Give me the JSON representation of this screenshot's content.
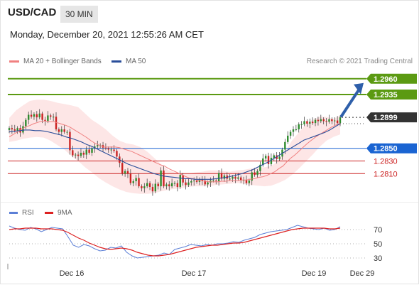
{
  "header": {
    "symbol": "USD/CAD",
    "timeframe": "30 MIN",
    "datetime": "Monday, December 20, 2021 12:55:26 AM CET"
  },
  "legend": {
    "ma_bb": "MA 20 + Bollinger Bands",
    "ma50": "MA 50",
    "credit": "Research © 2021 Trading Central"
  },
  "rsi_legend": {
    "rsi": "RSI",
    "ma9": "9MA"
  },
  "colors": {
    "bullish": "#5b9a12",
    "bearish": "#cc2222",
    "current": "#333333",
    "pivot": "#1a64d2",
    "ma20": "#f08080",
    "ma50": "#2a4e9a",
    "band_fill": "#fde2e2",
    "rsi": "#5b7fd6",
    "rsi_ma": "#dd2222",
    "arrow": "#2e5faa",
    "candle_up": "#2e8b2e",
    "candle_down": "#cc2222"
  },
  "chart_data": [
    {
      "type": "candlestick",
      "title": "USD/CAD 30 MIN",
      "x_ticks": [
        "Dec 16",
        "Dec 17",
        "Dec 19",
        "Dec 29"
      ],
      "ylim": [
        1.278,
        1.298
      ],
      "levels": [
        {
          "label": "1.2960",
          "value": 1.296,
          "kind": "resistance"
        },
        {
          "label": "1.2935",
          "value": 1.2935,
          "kind": "resistance"
        },
        {
          "label": "1.2899",
          "value": 1.2899,
          "kind": "current"
        },
        {
          "label": "1.2850",
          "value": 1.285,
          "kind": "pivot"
        },
        {
          "label": "1.2830",
          "value": 1.283,
          "kind": "support"
        },
        {
          "label": "1.2810",
          "value": 1.281,
          "kind": "support"
        }
      ],
      "close": [
        1.2882,
        1.288,
        1.2878,
        1.2882,
        1.2875,
        1.2885,
        1.2895,
        1.2903,
        1.29,
        1.2904,
        1.2899,
        1.2905,
        1.2895,
        1.2893,
        1.2902,
        1.29,
        1.29,
        1.288,
        1.2876,
        1.288,
        1.2876,
        1.2876,
        1.2847,
        1.2839,
        1.284,
        1.2838,
        1.2843,
        1.284,
        1.2848,
        1.2843,
        1.285,
        1.2853,
        1.2855,
        1.2855,
        1.2851,
        1.285,
        1.2848,
        1.2848,
        1.2846,
        1.2837,
        1.2827,
        1.281,
        1.2814,
        1.281,
        1.2795,
        1.2798,
        1.2803,
        1.279,
        1.2787,
        1.279,
        1.2795,
        1.2789,
        1.2782,
        1.2794,
        1.279,
        1.2815,
        1.279,
        1.2793,
        1.279,
        1.2795,
        1.2795,
        1.2789,
        1.2808,
        1.2796,
        1.2792,
        1.2796,
        1.2798,
        1.2799,
        1.2797,
        1.2801,
        1.2799,
        1.2793,
        1.2796,
        1.2799,
        1.2799,
        1.2798,
        1.2811,
        1.2802,
        1.2807,
        1.2802,
        1.2802,
        1.2805,
        1.2802,
        1.2804,
        1.28,
        1.28,
        1.2795,
        1.2799,
        1.2812,
        1.2808,
        1.2814,
        1.2824,
        1.2834,
        1.2838,
        1.2825,
        1.2835,
        1.2839,
        1.2833,
        1.2837,
        1.2848,
        1.286,
        1.287,
        1.2876,
        1.288,
        1.288,
        1.2888,
        1.2888,
        1.2893,
        1.2889,
        1.2892,
        1.289,
        1.2895,
        1.2893,
        1.2896,
        1.2893,
        1.2892,
        1.2896,
        1.2893,
        1.2894,
        1.289,
        1.2899
      ],
      "ma20": [
        1.2868,
        1.2872,
        1.2876,
        1.288,
        1.2884,
        1.2886,
        1.2889,
        1.2891,
        1.2893,
        1.2893,
        1.2892,
        1.2892,
        1.289,
        1.2888,
        1.2886,
        1.2883,
        1.2879,
        1.2875,
        1.2871,
        1.2867,
        1.2862,
        1.2858,
        1.2855,
        1.2852,
        1.2852,
        1.2852,
        1.2852,
        1.2851,
        1.2849,
        1.2847,
        1.2845,
        1.2842,
        1.2839,
        1.2836,
        1.2833,
        1.283,
        1.2827,
        1.2824,
        1.2822,
        1.2818,
        1.2815,
        1.2812,
        1.2809,
        1.2806,
        1.2803,
        1.2802,
        1.28,
        1.2799,
        1.2798,
        1.2797,
        1.2797,
        1.2797,
        1.2798,
        1.2798,
        1.2799,
        1.2799,
        1.2799,
        1.28,
        1.28,
        1.2801,
        1.2802,
        1.2804,
        1.2805,
        1.2807,
        1.281,
        1.2813,
        1.2818,
        1.2822,
        1.2829,
        1.2835,
        1.284,
        1.2846,
        1.2852,
        1.2858,
        1.2863,
        1.2868,
        1.2872,
        1.2876,
        1.288,
        1.2884,
        1.2887,
        1.289
      ],
      "ma20_start": 0,
      "ma50": [
        1.2876,
        1.2877,
        1.2878,
        1.2879,
        1.2879,
        1.2878,
        1.2878,
        1.2877,
        1.2875,
        1.2873,
        1.2871,
        1.2868,
        1.2866,
        1.2863,
        1.286,
        1.2856,
        1.2853,
        1.2849,
        1.2845,
        1.2841,
        1.2837,
        1.2833,
        1.2829,
        1.2825,
        1.2822,
        1.2819,
        1.2816,
        1.2813,
        1.281,
        1.2808,
        1.2806,
        1.2805,
        1.2804,
        1.2803,
        1.2802,
        1.2802,
        1.2801,
        1.2801,
        1.2801,
        1.2801,
        1.2802,
        1.2803,
        1.2804,
        1.2806,
        1.2808,
        1.281,
        1.2813,
        1.2816,
        1.282,
        1.2824,
        1.2828,
        1.2833,
        1.2838,
        1.2843,
        1.2848,
        1.2853,
        1.2858,
        1.2863,
        1.2866,
        1.2869,
        1.2872,
        1.2875,
        1.2879,
        1.2884,
        1.2889
      ],
      "bb_upper": [
        1.2898,
        1.291,
        1.2918,
        1.2925,
        1.2927,
        1.2927,
        1.2925,
        1.2922,
        1.292,
        1.2918,
        1.2915,
        1.2905,
        1.2895,
        1.2888,
        1.288,
        1.287,
        1.2862,
        1.2858,
        1.2856,
        1.2852,
        1.2845,
        1.2835,
        1.2825,
        1.2816,
        1.2812,
        1.281,
        1.281,
        1.2812,
        1.2813,
        1.2815,
        1.2815,
        1.2814,
        1.2813,
        1.2815,
        1.2816,
        1.2818,
        1.282,
        1.282,
        1.2822,
        1.283,
        1.2845,
        1.2862,
        1.2875,
        1.2888,
        1.2895,
        1.29,
        1.29,
        1.2896,
        1.2902
      ],
      "bb_lower": [
        1.286,
        1.2862,
        1.2865,
        1.2867,
        1.2868,
        1.2867,
        1.2862,
        1.2855,
        1.2848,
        1.2838,
        1.283,
        1.282,
        1.2812,
        1.2803,
        1.2796,
        1.279,
        1.2785,
        1.2781,
        1.2779,
        1.2778,
        1.2778,
        1.2779,
        1.2782,
        1.2784,
        1.2786,
        1.2787,
        1.2789,
        1.279,
        1.279,
        1.279,
        1.2792,
        1.2793,
        1.2794,
        1.2795,
        1.2794,
        1.2792,
        1.2791,
        1.279,
        1.2791,
        1.2795,
        1.28,
        1.2808,
        1.2818,
        1.2829,
        1.284,
        1.2852,
        1.2862,
        1.2868,
        1.2872
      ],
      "forecast_arrow_target": 1.296
    },
    {
      "type": "line",
      "title": "RSI",
      "series": [
        {
          "name": "RSI",
          "values": [
            75,
            72,
            70,
            69,
            73,
            71,
            67,
            70,
            73,
            72,
            71,
            60,
            48,
            45,
            49,
            47,
            43,
            40,
            41,
            45,
            44,
            47,
            38,
            33,
            30,
            31,
            32,
            33,
            34,
            37,
            35,
            42,
            44,
            46,
            49,
            48,
            47,
            49,
            48,
            50,
            50,
            51,
            53,
            52,
            55,
            57,
            59,
            63,
            65,
            67,
            68,
            69,
            70,
            73,
            76,
            74,
            72,
            71,
            70,
            72,
            69,
            70,
            74
          ]
        },
        {
          "name": "9MA",
          "values": [
            70,
            71,
            71,
            72,
            72,
            72,
            71,
            71,
            71,
            70,
            69,
            66,
            62,
            58,
            55,
            51,
            48,
            45,
            43,
            42,
            43,
            44,
            43,
            41,
            38,
            36,
            34,
            33,
            33,
            34,
            35,
            37,
            39,
            41,
            43,
            45,
            46,
            47,
            48,
            48,
            49,
            50,
            51,
            51,
            52,
            54,
            56,
            58,
            60,
            62,
            64,
            66,
            68,
            70,
            71,
            72,
            72,
            72,
            72,
            72,
            71,
            71,
            72
          ]
        }
      ],
      "ylim": [
        20,
        80
      ],
      "y_ticks": [
        "70",
        "50",
        "30"
      ]
    }
  ]
}
